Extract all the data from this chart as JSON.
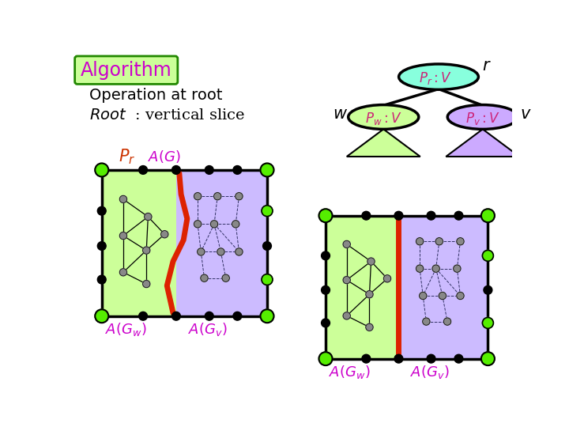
{
  "bg_color": "#ffffff",
  "title_box_color": "#ccff99",
  "title_box_edge": "#228800",
  "title_text_color": "#cc00cc",
  "text_color_black": "#000000",
  "pr_label_color": "#cc3300",
  "ag_label_color": "#cc00cc",
  "node_green": "#55ee00",
  "node_black": "#000000",
  "node_gray": "#888888",
  "left_region_color": "#ccff99",
  "right_region_color": "#ccbbff",
  "red_line_color": "#dd2200",
  "tree_node_color_r": "#88ffdd",
  "tree_node_color_w": "#ccff99",
  "tree_node_color_v": "#ccaaff",
  "triangle_color_w": "#ccff99",
  "triangle_color_v": "#ccaaff",
  "edge_color_left": "#000000",
  "edge_color_right": "#333366"
}
